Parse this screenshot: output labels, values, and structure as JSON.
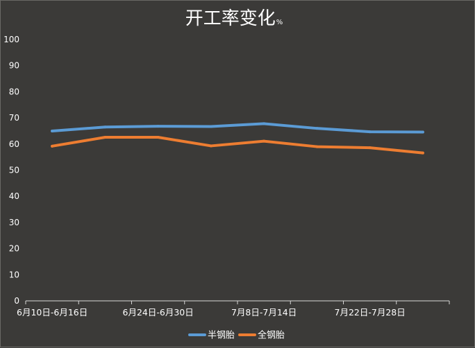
{
  "chart_data": {
    "type": "line",
    "title": "开工率变化",
    "title_unit": "%",
    "xlabel": "",
    "ylabel": "",
    "ylim": [
      0,
      100
    ],
    "y_ticks": [
      0,
      10,
      20,
      30,
      40,
      50,
      60,
      70,
      80,
      90,
      100
    ],
    "categories": [
      "6月10日-6月16日",
      "",
      "6月24日-6月30日",
      "",
      "7月8日-7月14日",
      "",
      "7月22日-7月28日",
      ""
    ],
    "x_tick_labels": [
      "6月10日-6月16日",
      "6月24日-6月30日",
      "7月8日-7月14日",
      "7月22日-7月28日"
    ],
    "series": [
      {
        "name": "半钢胎",
        "color": "#5b9bd5",
        "values": [
          65.0,
          66.5,
          66.8,
          66.7,
          67.8,
          66.0,
          64.7,
          64.6
        ]
      },
      {
        "name": "全钢胎",
        "color": "#ed7d31",
        "values": [
          59.2,
          62.6,
          62.6,
          59.3,
          61.1,
          59.0,
          58.6,
          56.6
        ]
      }
    ],
    "grid": false,
    "legend_position": "bottom"
  }
}
